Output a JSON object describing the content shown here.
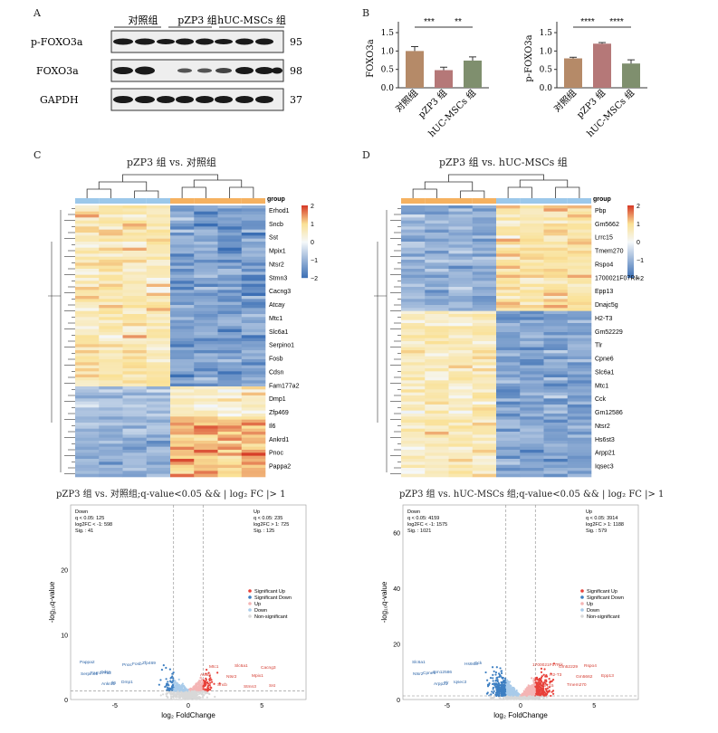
{
  "panels": {
    "a": "A",
    "b": "B",
    "c": "C",
    "d": "D"
  },
  "western": {
    "groups": [
      "对照组",
      "pZP3 组",
      "hUC-MSCs 组"
    ],
    "rows": [
      {
        "label": "p-FOXO3a",
        "kda": "95"
      },
      {
        "label": "FOXO3a",
        "kda": "98"
      },
      {
        "label": "GAPDH",
        "kda": "37"
      }
    ]
  },
  "bar_charts": {
    "left": {
      "ylabel": "FOXO3a",
      "categories": [
        "对照组",
        "pZP3 组",
        "hUC-MSCs 组"
      ],
      "ticks": [
        "0.0",
        "0.5",
        "1.0",
        "1.5"
      ],
      "sig": [
        "***",
        "**"
      ]
    },
    "right": {
      "ylabel": "p-FOXO3a",
      "categories": [
        "对照组",
        "pZP3 组",
        "hUC-MSCs 组"
      ],
      "ticks": [
        "0.0",
        "0.5",
        "1.0",
        "1.5"
      ],
      "sig": [
        "****",
        "****"
      ]
    }
  },
  "chart_data": [
    {
      "type": "bar",
      "categories": [
        "对照组",
        "pZP3 组",
        "hUC-MSCs 组"
      ],
      "values": [
        1.0,
        0.48,
        0.74
      ],
      "errors": [
        0.12,
        0.08,
        0.1
      ],
      "ylabel": "FOXO3a",
      "ylim": [
        0,
        1.6
      ],
      "colors": [
        "#b58a68",
        "#b57878",
        "#7f8f6e"
      ]
    },
    {
      "type": "bar",
      "categories": [
        "对照组",
        "pZP3 组",
        "hUC-MSCs 组"
      ],
      "values": [
        0.8,
        1.2,
        0.66
      ],
      "errors": [
        0.03,
        0.03,
        0.1
      ],
      "ylabel": "p-FOXO3a",
      "ylim": [
        0,
        1.6
      ],
      "colors": [
        "#b58a68",
        "#b57878",
        "#7f8f6e"
      ]
    }
  ],
  "heatmap_c": {
    "title": "pZP3 组 vs. 对照组",
    "group_label": "group",
    "legend_ticks": [
      "2",
      "1",
      "0",
      "−1",
      "−2"
    ],
    "genes": [
      "Erhod1",
      "Sncb",
      "Sst",
      "Mpix1",
      "Ntsr2",
      "Stmn3",
      "Cacng3",
      "Atcay",
      "Mtc1",
      "Slc6a1",
      "Serpino1",
      "Fosb",
      "Cdsn",
      "Fam177a2",
      "Dmp1",
      "Zfp469",
      "Il6",
      "Ankrd1",
      "Pnoc",
      "Pappa2"
    ]
  },
  "heatmap_d": {
    "title": "pZP3 组 vs. hUC-MSCs 组",
    "group_label": "group",
    "legend_ticks": [
      "2",
      "1",
      "0",
      "−1",
      "−2"
    ],
    "genes": [
      "Pbp",
      "Gm5662",
      "Lrrc15",
      "Tmem270",
      "Rspo4",
      "1700021F07Rik",
      "Epp13",
      "Dnajc5g",
      "H2-T3",
      "Gm52229",
      "Tlr",
      "Cpne6",
      "Slc6a1",
      "Mtc1",
      "Cck",
      "Gm12586",
      "Ntsr2",
      "Hs6st3",
      "Arpp21",
      "Iqsec3"
    ]
  },
  "volcano_c": {
    "title": "pZP3 组 vs. 对照组;q-value<0.05 && | log₂ FC |> 1",
    "down_text": [
      "Down",
      "q < 0.05: 125",
      "log2FC < -1: 598",
      "Sig. : 41"
    ],
    "up_text": [
      "Up",
      "q < 0.05: 235",
      "log2FC > 1: 725",
      "Sig. : 125"
    ],
    "xlabel": "log₂ FoldChange",
    "ylabel": "-log₁₀q-value",
    "xticks": [
      "-5",
      "0",
      "5"
    ],
    "yticks": [
      "0",
      "10",
      "20"
    ],
    "legend": [
      "Significant Up",
      "Significant Down",
      "Up",
      "Down",
      "Non-significant"
    ],
    "labels": [
      "Pappa2",
      "Cdsn",
      "Dmp1",
      "Zfp469",
      "Fam177a2",
      "Il6",
      "Fosb",
      "Serpino1",
      "Ankrd1",
      "Pnoc",
      "Atcay",
      "Sncb",
      "Slc6a1",
      "Mpix1",
      "Sst",
      "Mtc1",
      "Ntsr2",
      "Stmn3",
      "Cacng3"
    ]
  },
  "volcano_d": {
    "title": "pZP3 组 vs. hUC-MSCs 组;q-value<0.05 && | log₂ FC |> 1",
    "down_text": [
      "Down",
      "q < 0.05: 4159",
      "log2FC < -1: 1575",
      "Sig. : 1021"
    ],
    "up_text": [
      "Up",
      "q < 0.05: 3914",
      "log2FC > 1: 1188",
      "Sig. : 579"
    ],
    "xlabel": "log₂ FoldChange",
    "ylabel": "-log₁₀q-value",
    "xticks": [
      "-5",
      "0",
      "5"
    ],
    "yticks": [
      "0",
      "20",
      "40",
      "60"
    ],
    "legend": [
      "Significant Up",
      "Significant Down",
      "Up",
      "Down",
      "Non-significant"
    ],
    "labels": [
      "Slc6a1",
      "Gm12586",
      "Iqsec3",
      "Cck",
      "Cpne6",
      "Tlr",
      "Hs6st3",
      "Ntsr2",
      "Arpp21",
      "1700021F07Rik",
      "H2-T3",
      "Tmem270",
      "Rspo4",
      "Epp13",
      "Lrrc15",
      "Gm52229",
      "Gm5662"
    ]
  }
}
